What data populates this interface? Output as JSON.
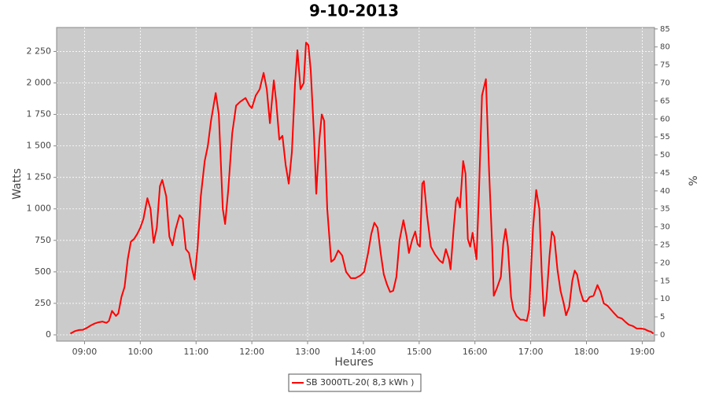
{
  "chart_data": {
    "type": "line",
    "title": "9-10-2013",
    "x_label": "Heures",
    "y_label": "Watts",
    "y2_label": "%",
    "xlim": [
      8.5,
      19.22
    ],
    "xticks": [
      {
        "value": 9,
        "label": "09:00"
      },
      {
        "value": 10,
        "label": "10:00"
      },
      {
        "value": 11,
        "label": "11:00"
      },
      {
        "value": 12,
        "label": "12:00"
      },
      {
        "value": 13,
        "label": "13:00"
      },
      {
        "value": 14,
        "label": "14:00"
      },
      {
        "value": 15,
        "label": "15:00"
      },
      {
        "value": 16,
        "label": "16:00"
      },
      {
        "value": 17,
        "label": "17:00"
      },
      {
        "value": 18,
        "label": "18:00"
      },
      {
        "value": 19,
        "label": "19:00"
      }
    ],
    "ylim": [
      -50,
      2440
    ],
    "yticks": [
      0,
      250,
      500,
      750,
      {
        "value": 1000,
        "label": "1 000"
      },
      {
        "value": 1250,
        "label": "1 250"
      },
      {
        "value": 1500,
        "label": "1 500"
      },
      {
        "value": 1750,
        "label": "1 750"
      },
      {
        "value": 2000,
        "label": "2 000"
      },
      {
        "value": 2250,
        "label": "2 250"
      }
    ],
    "y2lim": [
      -1.75,
      85.4
    ],
    "y2ticks": [
      0,
      5,
      10,
      15,
      20,
      25,
      30,
      35,
      40,
      45,
      50,
      55,
      60,
      65,
      70,
      75,
      80,
      85
    ],
    "grid": true,
    "legend": "bottom",
    "x": [
      8.746,
      8.831,
      8.901,
      8.972,
      9.042,
      9.113,
      9.183,
      9.254,
      9.324,
      9.394,
      9.437,
      9.493,
      9.563,
      9.606,
      9.662,
      9.718,
      9.775,
      9.831,
      9.887,
      9.944,
      10.0,
      10.056,
      10.127,
      10.183,
      10.239,
      10.296,
      10.352,
      10.394,
      10.465,
      10.521,
      10.577,
      10.634,
      10.704,
      10.761,
      10.817,
      10.873,
      10.915,
      10.972,
      11.028,
      11.085,
      11.155,
      11.211,
      11.268,
      11.352,
      11.408,
      11.479,
      11.521,
      11.577,
      11.648,
      11.718,
      11.789,
      11.887,
      11.958,
      12.0,
      12.07,
      12.141,
      12.211,
      12.268,
      12.324,
      12.394,
      12.437,
      12.493,
      12.549,
      12.606,
      12.662,
      12.718,
      12.775,
      12.817,
      12.873,
      12.93,
      12.972,
      13.014,
      13.056,
      13.113,
      13.155,
      13.211,
      13.254,
      13.296,
      13.352,
      13.423,
      13.479,
      13.549,
      13.62,
      13.69,
      13.775,
      13.859,
      13.944,
      14.014,
      14.085,
      14.141,
      14.197,
      14.254,
      14.31,
      14.366,
      14.423,
      14.479,
      14.535,
      14.592,
      14.648,
      14.718,
      14.775,
      14.817,
      14.873,
      14.93,
      14.972,
      15.014,
      15.056,
      15.085,
      15.141,
      15.211,
      15.282,
      15.366,
      15.423,
      15.479,
      15.535,
      15.563,
      15.62,
      15.662,
      15.69,
      15.732,
      15.789,
      15.831,
      15.873,
      15.915,
      15.958,
      16.028,
      16.07,
      16.127,
      16.197,
      16.254,
      16.31,
      16.338,
      16.394,
      16.465,
      16.507,
      16.549,
      16.592,
      16.648,
      16.69,
      16.746,
      16.817,
      16.873,
      16.93,
      16.972,
      17.042,
      17.099,
      17.155,
      17.197,
      17.239,
      17.282,
      17.338,
      17.38,
      17.423,
      17.479,
      17.535,
      17.592,
      17.634,
      17.69,
      17.746,
      17.789,
      17.831,
      17.887,
      17.944,
      18.0,
      18.056,
      18.127,
      18.197,
      18.254,
      18.31,
      18.38,
      18.479,
      18.563,
      18.634,
      18.704,
      18.761,
      18.831,
      18.901,
      18.972,
      19.042,
      19.113,
      19.155,
      19.2
    ],
    "series": [
      {
        "name": "SB 3000TL-20( 8,3 kWh )",
        "color": "#ff0000",
        "values": [
          10,
          30,
          38,
          40,
          55,
          75,
          90,
          100,
          105,
          95,
          110,
          190,
          150,
          170,
          300,
          380,
          600,
          740,
          760,
          800,
          850,
          920,
          1085,
          1000,
          730,
          850,
          1180,
          1230,
          1100,
          780,
          710,
          840,
          950,
          920,
          680,
          650,
          550,
          440,
          700,
          1100,
          1380,
          1500,
          1700,
          1920,
          1750,
          1000,
          880,
          1150,
          1600,
          1820,
          1850,
          1880,
          1820,
          1800,
          1900,
          1950,
          2080,
          1950,
          1680,
          2020,
          1850,
          1550,
          1580,
          1350,
          1200,
          1450,
          2000,
          2260,
          1950,
          2000,
          2320,
          2300,
          2100,
          1600,
          1120,
          1550,
          1750,
          1700,
          1000,
          580,
          600,
          670,
          630,
          500,
          450,
          450,
          470,
          500,
          650,
          800,
          890,
          850,
          650,
          480,
          400,
          340,
          350,
          460,
          750,
          910,
          780,
          650,
          750,
          820,
          720,
          700,
          1200,
          1220,
          950,
          700,
          640,
          590,
          570,
          680,
          600,
          520,
          850,
          1060,
          1090,
          1010,
          1380,
          1280,
          760,
          700,
          810,
          600,
          1100,
          1900,
          2030,
          1300,
          700,
          310,
          370,
          460,
          720,
          840,
          700,
          300,
          200,
          150,
          120,
          120,
          110,
          200,
          850,
          1150,
          1000,
          500,
          150,
          280,
          630,
          820,
          780,
          520,
          350,
          250,
          155,
          220,
          430,
          510,
          480,
          350,
          270,
          265,
          300,
          310,
          395,
          340,
          250,
          230,
          180,
          140,
          130,
          100,
          80,
          70,
          50,
          50,
          45,
          30,
          25,
          10
        ]
      }
    ]
  }
}
